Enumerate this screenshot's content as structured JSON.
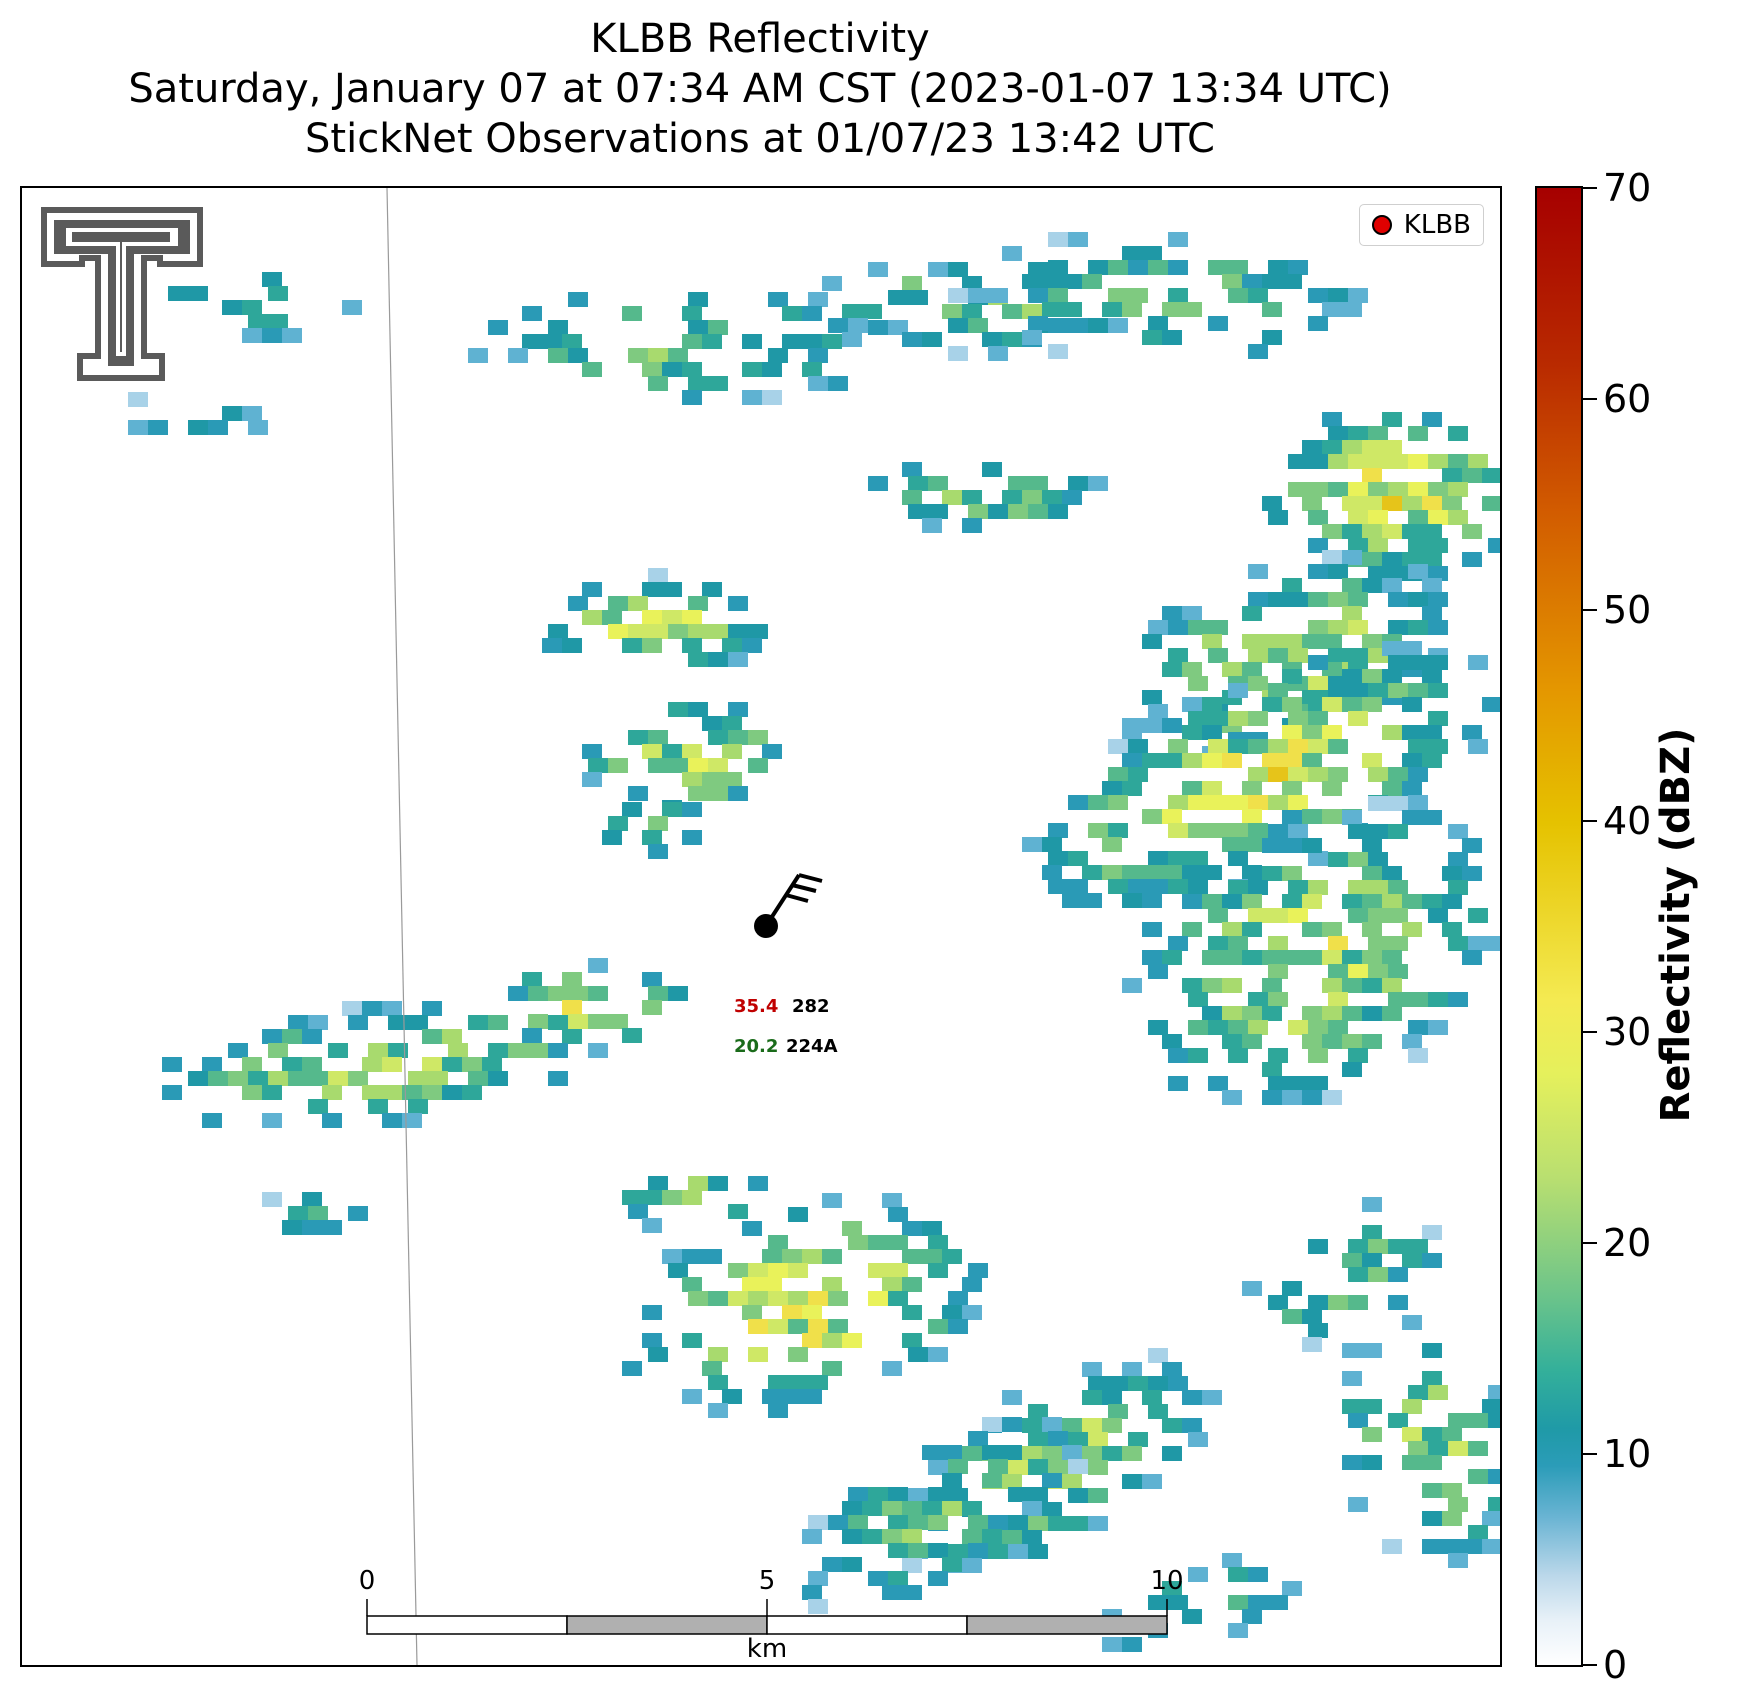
{
  "title": {
    "line1": "KLBB Reflectivity",
    "line2": "Saturday, January 07 at 07:34 AM CST (2023-01-07 13:34 UTC)",
    "line3": "StickNet Observations at 01/07/23 13:42 UTC"
  },
  "legend": {
    "label": "KLBB",
    "marker_color": "#e00000"
  },
  "colorbar": {
    "label": "Reflectivity (dBZ)",
    "ticks": [
      "0",
      "10",
      "20",
      "30",
      "40",
      "50",
      "60",
      "70"
    ],
    "colors": [
      "#ffffff",
      "#2b9cb8",
      "#6cc48a",
      "#e5f05c",
      "#e5c200",
      "#d25c00",
      "#b92a00",
      "#a60000"
    ]
  },
  "scalebar": {
    "labels": [
      "0",
      "5",
      "10"
    ],
    "unit": "km"
  },
  "station": {
    "temperature": "35.4",
    "dewpoint": "20.2",
    "id_top": "282",
    "id_bottom": "224A"
  },
  "logo": {
    "icon": "double-t-logo-icon"
  }
}
